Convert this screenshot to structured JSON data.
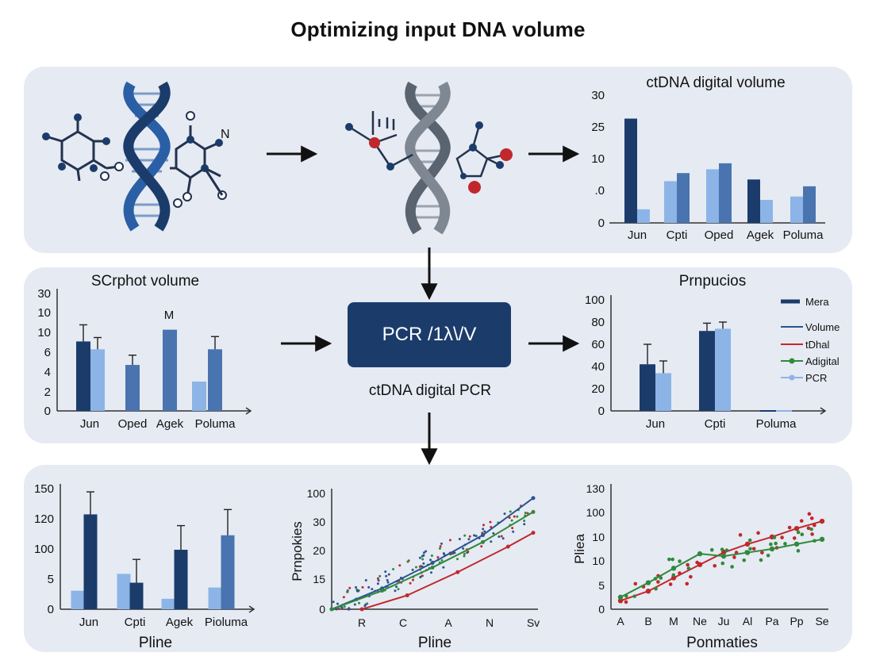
{
  "title": "Optimizing input DNA volume",
  "colors": {
    "navy": "#1b3c6b",
    "dark_blue": "#2a5490",
    "mid_blue": "#4a74b0",
    "light_blue": "#8cb4e6",
    "red": "#c0282d",
    "green": "#2e8a3c",
    "panel": "#e6eaf2"
  },
  "icons": [
    "dna-helix-icon",
    "molecule-icon",
    "arrow-right-icon",
    "arrow-down-icon"
  ],
  "pcr_box": {
    "label": "PCR /1λ\\/V",
    "caption": "ctDNA digital PCR"
  },
  "chart_data": [
    {
      "id": "top-right",
      "type": "bar",
      "title": "ctDNA digital volume",
      "categories": [
        "Jun",
        "Cpti",
        "Oped",
        "Agek",
        "Poluma"
      ],
      "yticks": [
        "30",
        "25",
        "10",
        ".0",
        "0"
      ],
      "ylim": [
        0,
        30
      ],
      "series": [
        {
          "name": "dark",
          "color": "#1b3c6b",
          "values": [
            24.5,
            null,
            null,
            10.2,
            null
          ]
        },
        {
          "name": "light",
          "color": "#8cb4e6",
          "values": [
            3.2,
            9.8,
            12.6,
            5.4,
            6.2
          ]
        },
        {
          "name": "mid",
          "color": "#4a74b0",
          "values": [
            null,
            11.7,
            14.0,
            null,
            8.6
          ]
        }
      ]
    },
    {
      "id": "mid-left",
      "type": "bar",
      "title": "SCrphot volume",
      "categories": [
        "Jun",
        "Oped",
        "Agek",
        "Poluma"
      ],
      "yticks": [
        "30",
        "10",
        "10",
        "6",
        "4",
        "2",
        "0"
      ],
      "annotation": "M",
      "series": [
        {
          "name": "dark",
          "color": "#1b3c6b",
          "values": [
            7.1,
            null,
            null,
            null
          ],
          "err": [
            1.7,
            null,
            null,
            null
          ]
        },
        {
          "name": "light",
          "color": "#8cb4e6",
          "values": [
            6.3,
            null,
            null,
            3.0
          ],
          "err": [
            1.2,
            null,
            null,
            null
          ]
        },
        {
          "name": "mid",
          "color": "#4a74b0",
          "values": [
            null,
            4.7,
            8.3,
            6.3
          ],
          "err": [
            null,
            1.0,
            null,
            1.3
          ]
        }
      ]
    },
    {
      "id": "mid-right",
      "type": "bar",
      "title": "Prnpucios",
      "categories": [
        "Jun",
        "Cpti",
        "Poluma"
      ],
      "yticks": [
        "100",
        "80",
        "60",
        "40",
        "20",
        "0"
      ],
      "ylim": [
        0,
        100
      ],
      "legend": [
        {
          "label": "Mera",
          "color": "#1b3c6b",
          "style": "thick"
        },
        {
          "label": "Volume",
          "color": "#2a5490",
          "style": "line"
        },
        {
          "label": "tDhal",
          "color": "#c0282d",
          "style": "line"
        },
        {
          "label": "Adigital",
          "color": "#2e8a3c",
          "style": "dot"
        },
        {
          "label": "PCR",
          "color": "#8cb4e6",
          "style": "dot"
        }
      ],
      "series": [
        {
          "name": "dark",
          "color": "#1b3c6b",
          "values": [
            42,
            72,
            0
          ],
          "err": [
            18,
            7,
            null
          ]
        },
        {
          "name": "light",
          "color": "#8cb4e6",
          "values": [
            34,
            74,
            0
          ],
          "err": [
            11,
            6,
            null
          ]
        }
      ]
    },
    {
      "id": "bottom-left",
      "type": "bar",
      "xlabel": "Pline",
      "categories": [
        "Jun",
        "Cpti",
        "Agek",
        "Pioluma"
      ],
      "yticks": [
        "150",
        "120",
        "100",
        "5",
        "0"
      ],
      "series": [
        {
          "name": "light",
          "color": "#8cb4e6",
          "values": [
            2.3,
            4.4,
            1.3,
            2.7
          ]
        },
        {
          "name": "dark",
          "color": "#1b3c6b",
          "values": [
            11.8,
            3.3,
            7.4,
            null
          ],
          "err": [
            2.8,
            2.9,
            3.0,
            null
          ]
        },
        {
          "name": "mid",
          "color": "#4a74b0",
          "values": [
            null,
            null,
            null,
            9.2
          ],
          "err": [
            null,
            null,
            null,
            3.2
          ]
        }
      ]
    },
    {
      "id": "bottom-center",
      "type": "scatter",
      "xlabel": "Pline",
      "ylabel": "Prnpokies",
      "xticks": [
        "R",
        "C",
        "A",
        "N",
        "Sv"
      ],
      "yticks": [
        "100",
        "30",
        "20",
        "15",
        "0"
      ],
      "series": [
        {
          "name": "blue",
          "color": "#2a5490",
          "x": [
            0,
            1,
            2,
            3,
            4
          ],
          "y": [
            0,
            0.9,
            2.0,
            3.2,
            4.8
          ]
        },
        {
          "name": "green",
          "color": "#2e8a3c",
          "x": [
            0,
            1,
            2,
            3,
            4
          ],
          "y": [
            0,
            0.8,
            1.8,
            2.9,
            4.2
          ]
        },
        {
          "name": "red",
          "color": "#c0282d",
          "x": [
            0.6,
            1.5,
            2.5,
            3.5,
            4.0
          ],
          "y": [
            0,
            0.6,
            1.6,
            2.7,
            3.3
          ]
        }
      ]
    },
    {
      "id": "bottom-right",
      "type": "line",
      "xlabel": "Ponmaties",
      "ylabel": "Pliea",
      "categories": [
        "A",
        "B",
        "M",
        "Ne",
        "Ju",
        "Al",
        "Pa",
        "Pp",
        "Se"
      ],
      "yticks": [
        "130",
        "100",
        "10",
        "10",
        "5",
        "0"
      ],
      "series": [
        {
          "name": "red",
          "color": "#c0282d",
          "values": [
            0.7,
            1.5,
            2.6,
            3.7,
            4.7,
            5.4,
            6.0,
            6.7,
            7.3
          ]
        },
        {
          "name": "green",
          "color": "#2e8a3c",
          "values": [
            1.0,
            2.2,
            3.4,
            4.6,
            4.4,
            4.7,
            5.0,
            5.4,
            5.8
          ]
        }
      ]
    }
  ]
}
